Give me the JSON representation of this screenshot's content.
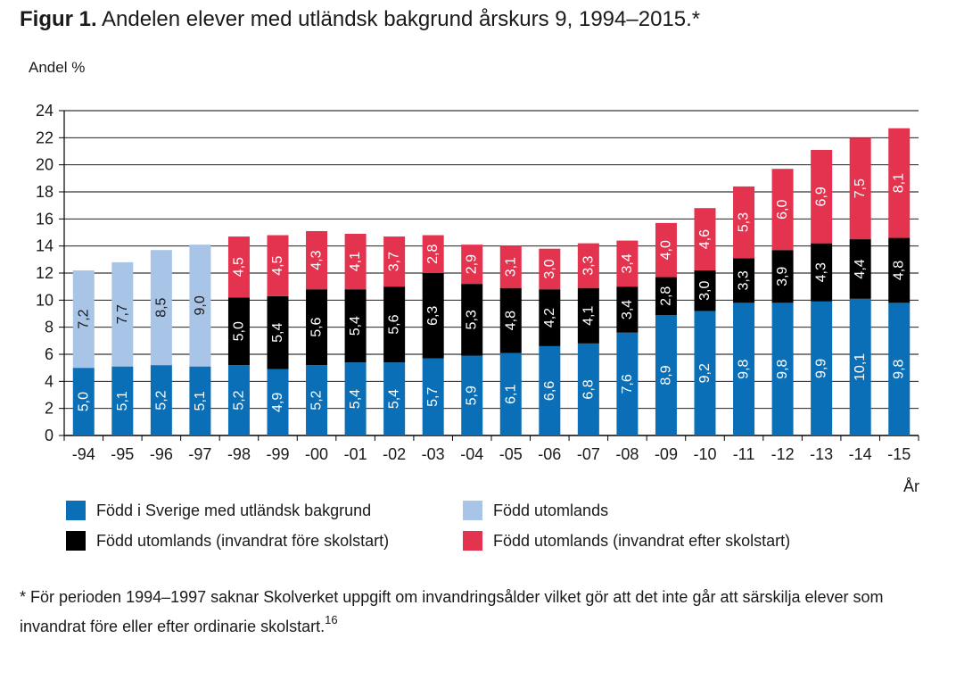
{
  "figure": {
    "label": "Figur 1.",
    "title": "Andelen elever med utländsk bakgrund årskurs 9, 1994–2015.*",
    "footnote": "* För perioden 1994–1997 saknar Skolverket uppgift om invandringsålder vilket gör att det inte går att särskilja elever som invandrat före eller efter ordinarie skolstart.",
    "footnote_ref": "16"
  },
  "chart_data": {
    "type": "bar",
    "stacked": true,
    "ylabel": "Andel %",
    "xlabel": "År",
    "ylim": [
      0,
      24
    ],
    "yticks": [
      0,
      2,
      4,
      6,
      8,
      10,
      12,
      14,
      16,
      18,
      20,
      22,
      24
    ],
    "grid": true,
    "categories": [
      "-94",
      "-95",
      "-96",
      "-97",
      "-98",
      "-99",
      "-00",
      "-01",
      "-02",
      "-03",
      "-04",
      "-05",
      "-06",
      "-07",
      "-08",
      "-09",
      "-10",
      "-11",
      "-12",
      "-13",
      "-14",
      "-15"
    ],
    "series": [
      {
        "name": "Född i Sverige med utländsk bakgrund",
        "color": "#0a6fb6",
        "values": [
          5.0,
          5.1,
          5.2,
          5.1,
          5.2,
          4.9,
          5.2,
          5.4,
          5.4,
          5.7,
          5.9,
          6.1,
          6.6,
          6.8,
          7.6,
          8.9,
          9.2,
          9.8,
          9.8,
          9.9,
          10.1,
          9.8
        ],
        "labels": [
          "5,0",
          "5,1",
          "5,2",
          "5,1",
          "5,2",
          "4,9",
          "5,2",
          "5,4",
          "5,4",
          "5,7",
          "5,9",
          "6,1",
          "6,6",
          "6,8",
          "7,6",
          "8,9",
          "9,2",
          "9,8",
          "9,8",
          "9,9",
          "10,1",
          "9,8"
        ]
      },
      {
        "name": "Född utomlands",
        "color": "#a8c4e6",
        "values": [
          7.2,
          7.7,
          8.5,
          9.0,
          null,
          null,
          null,
          null,
          null,
          null,
          null,
          null,
          null,
          null,
          null,
          null,
          null,
          null,
          null,
          null,
          null,
          null
        ],
        "labels": [
          "7,2",
          "7,7",
          "8,5",
          "9,0",
          null,
          null,
          null,
          null,
          null,
          null,
          null,
          null,
          null,
          null,
          null,
          null,
          null,
          null,
          null,
          null,
          null,
          null
        ]
      },
      {
        "name": "Född utomlands (invandrat före skolstart)",
        "color": "#000000",
        "values": [
          null,
          null,
          null,
          null,
          5.0,
          5.4,
          5.6,
          5.4,
          5.6,
          6.3,
          5.3,
          4.8,
          4.2,
          4.1,
          3.4,
          2.8,
          3.0,
          3.3,
          3.9,
          4.3,
          4.4,
          4.8
        ],
        "labels": [
          null,
          null,
          null,
          null,
          "5,0",
          "5,4",
          "5,6",
          "5,4",
          "5,6",
          "6,3",
          "5,3",
          "4,8",
          "4,2",
          "4,1",
          "3,4",
          "2,8",
          "3,0",
          "3,3",
          "3,9",
          "4,3",
          "4,4",
          "4,8"
        ]
      },
      {
        "name": "Född utomlands (invandrat efter skolstart)",
        "color": "#e4334f",
        "values": [
          null,
          null,
          null,
          null,
          4.5,
          4.5,
          4.3,
          4.1,
          3.7,
          2.8,
          2.9,
          3.1,
          3.0,
          3.3,
          3.4,
          4.0,
          4.6,
          5.3,
          6.0,
          6.9,
          7.5,
          8.1
        ],
        "labels": [
          null,
          null,
          null,
          null,
          "4,5",
          "4,5",
          "4,3",
          "4,1",
          "3,7",
          "2,8",
          "2,9",
          "3,1",
          "3,0",
          "3,3",
          "3,4",
          "4,0",
          "4,6",
          "5,3",
          "6,0",
          "6,9",
          "7,5",
          "8,1"
        ]
      }
    ],
    "legend": {
      "placement": "bottom",
      "order": [
        0,
        1,
        2,
        3
      ]
    }
  }
}
